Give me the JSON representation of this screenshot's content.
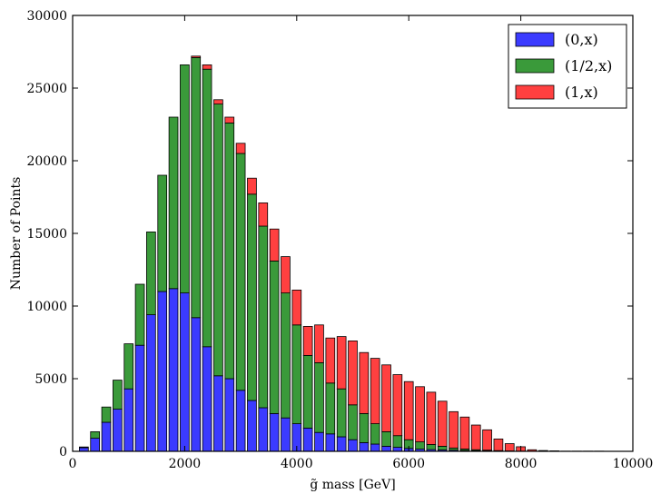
{
  "chart_data": {
    "type": "bar",
    "stacked": true,
    "title": "",
    "xlabel": "g̃ mass [GeV]",
    "ylabel": "Number of Points",
    "xlim": [
      0,
      10000
    ],
    "ylim": [
      0,
      30000
    ],
    "xticks": [
      0,
      2000,
      4000,
      6000,
      8000,
      10000
    ],
    "yticks": [
      0,
      5000,
      10000,
      15000,
      20000,
      25000,
      30000
    ],
    "bin_width": 200,
    "grid": false,
    "legend_position": "top-right",
    "x": [
      200,
      400,
      600,
      800,
      1000,
      1200,
      1400,
      1600,
      1800,
      2000,
      2200,
      2400,
      2600,
      2800,
      3000,
      3200,
      3400,
      3600,
      3800,
      4000,
      4200,
      4400,
      4600,
      4800,
      5000,
      5200,
      5400,
      5600,
      5800,
      6000,
      6200,
      6400,
      6600,
      6800,
      7000,
      7200,
      7400,
      7600,
      7800,
      8000,
      8200,
      8400,
      8600,
      8800,
      9000,
      9200,
      9400,
      9600
    ],
    "series": [
      {
        "name": "(0,x)",
        "color": "#3b3bff",
        "values": [
          250,
          900,
          2000,
          2900,
          4300,
          7300,
          9400,
          11000,
          11200,
          10900,
          9200,
          7200,
          5200,
          5000,
          4200,
          3500,
          3000,
          2600,
          2300,
          1900,
          1600,
          1300,
          1200,
          1000,
          800,
          600,
          500,
          350,
          280,
          200,
          150,
          120,
          100,
          80,
          60,
          40,
          30,
          20,
          10,
          5,
          3,
          2,
          1,
          1,
          1,
          1,
          1,
          0
        ]
      },
      {
        "name": "(1/2,x)",
        "color": "#3a9a3a",
        "values": [
          50,
          450,
          1050,
          2000,
          3100,
          4200,
          5700,
          8000,
          11800,
          15700,
          17900,
          19100,
          18700,
          17600,
          16300,
          14200,
          12500,
          10500,
          8600,
          6800,
          5000,
          4800,
          3500,
          3300,
          2400,
          2000,
          1400,
          1000,
          800,
          600,
          500,
          350,
          250,
          150,
          100,
          70,
          50,
          30,
          20,
          10,
          5,
          3,
          2,
          1,
          1,
          1,
          1,
          0
        ]
      },
      {
        "name": "(1,x)",
        "color": "#ff4040",
        "values": [
          0,
          0,
          0,
          0,
          0,
          0,
          0,
          0,
          0,
          0,
          100,
          300,
          300,
          400,
          700,
          1100,
          1600,
          2200,
          2500,
          2400,
          2000,
          2600,
          3100,
          3600,
          4400,
          4200,
          4500,
          4600,
          4200,
          4000,
          3800,
          3600,
          3100,
          2500,
          2200,
          1700,
          1400,
          800,
          500,
          300,
          100,
          50,
          30,
          10,
          10,
          10,
          10,
          0
        ]
      }
    ]
  }
}
